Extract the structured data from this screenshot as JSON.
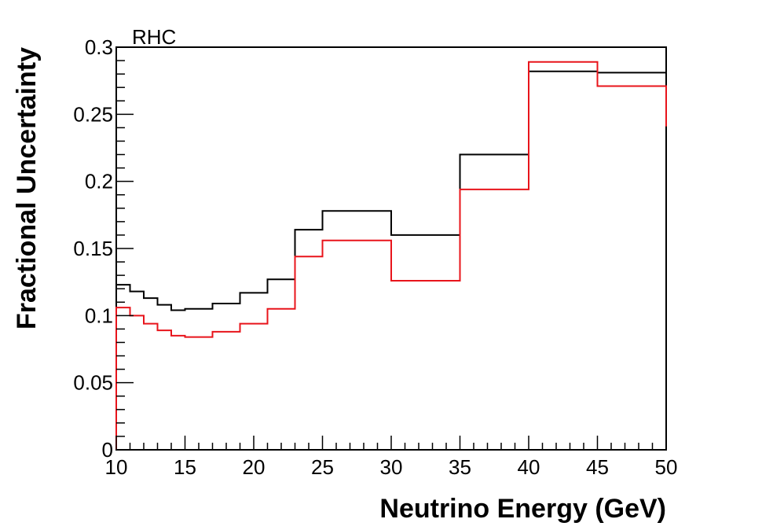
{
  "chart_data": {
    "type": "line",
    "step": true,
    "label": "RHC",
    "xlabel": "Neutrino Energy (GeV)",
    "ylabel": "Fractional Uncertainty",
    "xlim": [
      10,
      50
    ],
    "ylim": [
      0,
      0.3
    ],
    "xticks": [
      "10",
      "15",
      "20",
      "25",
      "30",
      "35",
      "40",
      "45",
      "50"
    ],
    "yticks": [
      "0",
      "0.05",
      "0.1",
      "0.15",
      "0.2",
      "0.25",
      "0.3"
    ],
    "bin_edges": [
      10,
      11,
      12,
      13,
      14,
      15,
      17,
      19,
      21,
      23,
      25,
      30,
      35,
      40,
      45,
      50
    ],
    "series": [
      {
        "color": "#000000",
        "values": [
          0.123,
          0.118,
          0.113,
          0.108,
          0.104,
          0.105,
          0.109,
          0.117,
          0.127,
          0.164,
          0.178,
          0.16,
          0.22,
          0.282,
          0.281
        ]
      },
      {
        "color": "#e8141b",
        "values": [
          0.106,
          0.1,
          0.094,
          0.089,
          0.085,
          0.084,
          0.088,
          0.094,
          0.105,
          0.144,
          0.156,
          0.126,
          0.194,
          0.289,
          0.271
        ]
      }
    ]
  }
}
